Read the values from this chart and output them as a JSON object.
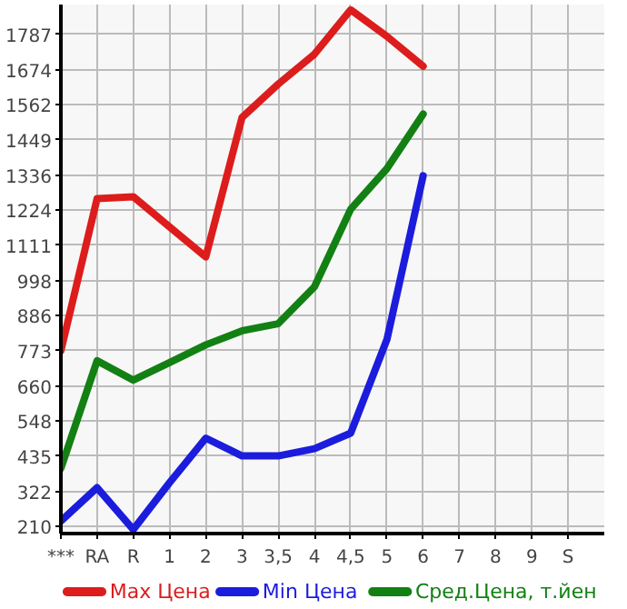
{
  "chart_data": {
    "type": "line",
    "categories": [
      "***",
      "RA",
      "R",
      "1",
      "2",
      "3",
      "3,5",
      "4",
      "4,5",
      "5",
      "6",
      "7",
      "8",
      "9",
      "S"
    ],
    "series": [
      {
        "name": "Max Цена",
        "color": "#dd1c1c",
        "values": [
          773,
          1261,
          1267,
          1170,
          1074,
          1521,
          1628,
          1724,
          1866,
          1781,
          1685,
          null,
          null,
          null,
          null
        ]
      },
      {
        "name": "Min Цена",
        "color": "#1c1cdd",
        "values": [
          227,
          334,
          200,
          350,
          493,
          436,
          436,
          459,
          509,
          809,
          1334,
          null,
          null,
          null,
          null
        ]
      },
      {
        "name": "Сред.Цена, т.йен",
        "color": "#138013",
        "values": [
          396,
          741,
          679,
          735,
          792,
          837,
          860,
          978,
          1227,
          1357,
          1532,
          null,
          null,
          null,
          null
        ]
      }
    ],
    "ylim": [
      187,
      1883
    ],
    "yticks": [
      210,
      322,
      435,
      548,
      660,
      773,
      886,
      998,
      1111,
      1224,
      1336,
      1449,
      1562,
      1674,
      1787
    ],
    "grid": true,
    "legend": "bottom",
    "line_style": "solid",
    "marker": "none"
  }
}
